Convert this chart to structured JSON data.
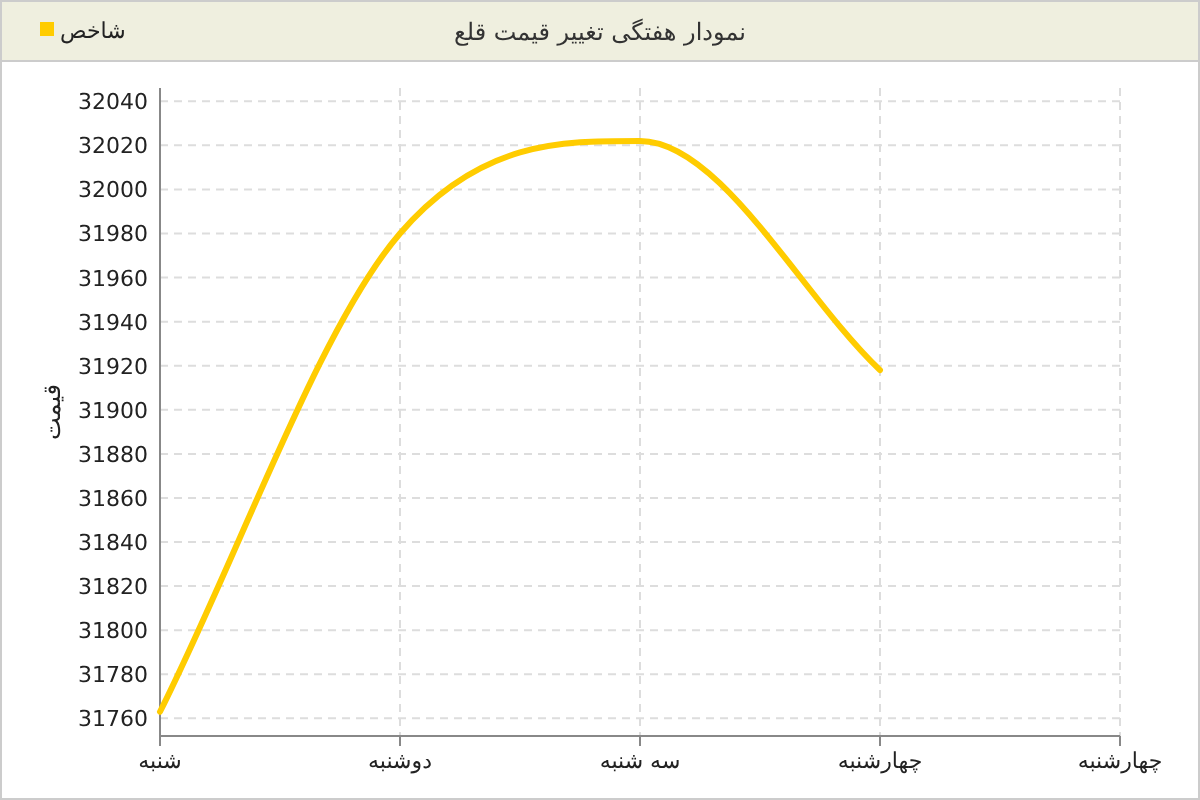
{
  "chart_data": {
    "type": "line",
    "title": "نمودار هفتگی تغییر قیمت قلع",
    "ylabel": "قیمت",
    "categories": [
      "شنبه",
      "دوشنبه",
      "سه شنبه",
      "چهارشنبه",
      "چهارشنبه"
    ],
    "series": [
      {
        "name": "شاخص",
        "color": "#ffcc00",
        "values": [
          31763,
          31980,
          32022,
          31918,
          null
        ]
      }
    ],
    "ylim": [
      31752,
      32046
    ],
    "yticks": [
      31760,
      31780,
      31800,
      31820,
      31840,
      31860,
      31880,
      31900,
      31920,
      31940,
      31960,
      31980,
      32000,
      32020,
      32040
    ],
    "grid": true,
    "legend": "top left",
    "marker": "none",
    "line_style": "solid"
  }
}
